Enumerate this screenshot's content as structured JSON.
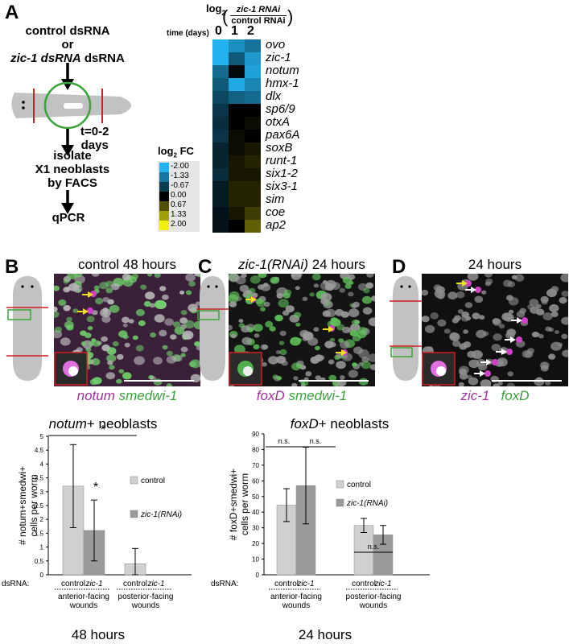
{
  "panelA": {
    "letter": "A",
    "flow_line1": "control dsRNA",
    "flow_line2": "or",
    "flow_line3": "zic-1 dsRNA",
    "flow_time1": "t=0-2",
    "flow_time2": "days",
    "flow_isolate1": "isolate",
    "flow_isolate2": "X1 neoblasts",
    "flow_isolate3": "by FACS",
    "flow_qpcr": "qPCR",
    "heatmap_title_prefix": "log",
    "heatmap_title_sub": "2",
    "heatmap_num": "zic-1 RNAi",
    "heatmap_den": "control RNAi",
    "time_label": "time (days)",
    "days": [
      "0",
      "1",
      "2"
    ],
    "genes": [
      "ovo",
      "zic-1",
      "notum",
      "hmx-1",
      "dlx",
      "sp6/9",
      "otxA",
      "pax6A",
      "soxB",
      "runt-1",
      "six1-2",
      "six3-1",
      "sim",
      "coe",
      "ap2"
    ],
    "values": [
      [
        -2.0,
        -1.6,
        -1.3
      ],
      [
        -2.0,
        -1.0,
        -1.7
      ],
      [
        -1.2,
        -0.1,
        -1.8
      ],
      [
        -1.0,
        -1.9,
        -1.5
      ],
      [
        -0.8,
        -1.1,
        -1.2
      ],
      [
        -0.6,
        0.0,
        0.0
      ],
      [
        -0.5,
        0.0,
        0.1
      ],
      [
        -0.6,
        0.1,
        0.0
      ],
      [
        -0.4,
        0.1,
        0.2
      ],
      [
        -0.4,
        0.2,
        0.3
      ],
      [
        -0.5,
        0.2,
        0.2
      ],
      [
        -0.3,
        0.3,
        0.3
      ],
      [
        -0.3,
        0.3,
        0.3
      ],
      [
        -0.2,
        0.2,
        0.5
      ],
      [
        -0.2,
        0.0,
        0.8
      ]
    ],
    "legend_title_prefix": "log",
    "legend_title_sub": "2",
    "legend_title_suffix": " FC",
    "legend_ticks": [
      "-2.00",
      "-1.33",
      "-0.67",
      "0.00",
      "0.67",
      "1.33",
      "2.00"
    ],
    "colors": {
      "low": "#22b2f0",
      "mid": "#000000",
      "high": "#f2ee10"
    }
  },
  "panelB": {
    "letter": "B",
    "title": "control 48 hours",
    "probe1": "notum",
    "probe2": "smedwi-1"
  },
  "panelC": {
    "letter": "C",
    "title_italic": "zic-1(RNAi)",
    "title_rest": " 24 hours",
    "probe1": "foxD",
    "probe2": "smedwi-1"
  },
  "panelD": {
    "letter": "D",
    "title": "24 hours",
    "probe1": "zic-1",
    "probe2": "foxD"
  },
  "chart_data": [
    {
      "type": "bar",
      "title_italic": "notum",
      "title_rest": "+ neoblasts",
      "ylabel_line1": "# notum+smedwi+",
      "ylabel_line2": "cells per worm",
      "ylim": [
        0,
        5
      ],
      "yticks": [
        "0",
        "0.5",
        "1",
        "1.5",
        "2",
        "2.5",
        "3",
        "3.5",
        "4",
        "4.5",
        "5"
      ],
      "series": [
        {
          "name": "control",
          "values": [
            3.2,
            0.4
          ],
          "errors": [
            1.5,
            0.55
          ],
          "color": "#d0d0d0"
        },
        {
          "name": "zic-1(RNAi)",
          "values": [
            1.6,
            0.0
          ],
          "errors": [
            1.1,
            0.0
          ],
          "color": "#9a9a9a"
        }
      ],
      "group_labels": [
        [
          "anterior-facing",
          "wounds"
        ],
        [
          "posterior-facing",
          "wounds"
        ]
      ],
      "dsrna_label": "dsRNA:",
      "bar_label_control": "control",
      "bar_label_zic": "zic-1",
      "significance": "*",
      "footer": "48 hours"
    },
    {
      "type": "bar",
      "title_italic": "foxD",
      "title_rest": "+ neoblasts",
      "ylabel_line1": "# foxD+smedwi+",
      "ylabel_line2": "cells per worm",
      "ylim": [
        0,
        90
      ],
      "yticks": [
        "0",
        "10",
        "20",
        "30",
        "40",
        "50",
        "60",
        "70",
        "80",
        "90"
      ],
      "series": [
        {
          "name": "control",
          "values": [
            44.5,
            31.5
          ],
          "errors": [
            10.5,
            4.5
          ],
          "color": "#d0d0d0"
        },
        {
          "name": "zic-1(RNAi)",
          "values": [
            57.0,
            25.5
          ],
          "errors": [
            24.5,
            6.0
          ],
          "color": "#9a9a9a"
        }
      ],
      "group_labels": [
        [
          "anterior-facing",
          "wounds"
        ],
        [
          "posterior-facing",
          "wounds"
        ]
      ],
      "dsrna_label": "dsRNA:",
      "bar_label_control": "control",
      "bar_label_zic": "zic-1",
      "significance": "n.s.",
      "footer": "24 hours"
    }
  ]
}
